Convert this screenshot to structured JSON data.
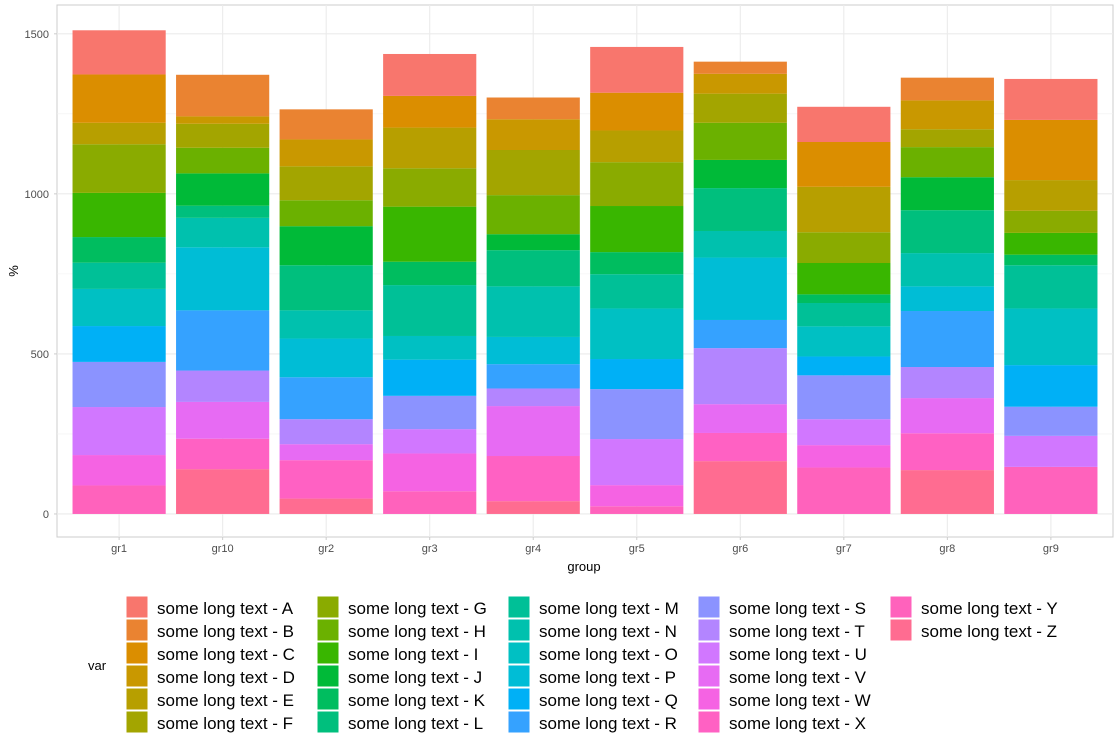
{
  "chart_data": {
    "type": "bar",
    "stacked": true,
    "title": "",
    "xlabel": "group",
    "ylabel": "%",
    "ylim": [
      -72,
      1590
    ],
    "yticks": [
      0,
      500,
      1000,
      1500
    ],
    "grid": true,
    "legend_title": "var",
    "legend_position": "bottom",
    "categories": [
      "gr1",
      "gr10",
      "gr2",
      "gr3",
      "gr4",
      "gr5",
      "gr6",
      "gr7",
      "gr8",
      "gr9"
    ],
    "series": [
      {
        "name": "some long text - A",
        "color": "#F8766D",
        "values": [
          138,
          0,
          0,
          131,
          0,
          143,
          0,
          110,
          0,
          128
        ]
      },
      {
        "name": "some long text - B",
        "color": "#EA8331",
        "values": [
          0,
          130,
          94,
          0,
          68,
          0,
          38,
          0,
          71,
          0
        ]
      },
      {
        "name": "some long text - C",
        "color": "#DB8E00",
        "values": [
          151,
          0,
          0,
          99,
          0,
          118,
          0,
          140,
          0,
          188
        ]
      },
      {
        "name": "some long text - D",
        "color": "#C99800",
        "values": [
          0,
          23,
          84,
          0,
          96,
          0,
          62,
          0,
          90,
          0
        ]
      },
      {
        "name": "some long text - E",
        "color": "#B79F00",
        "values": [
          67,
          0,
          0,
          127,
          0,
          99,
          0,
          142,
          0,
          96
        ]
      },
      {
        "name": "some long text - F",
        "color": "#A3A500",
        "values": [
          0,
          75,
          106,
          0,
          141,
          0,
          91,
          0,
          56,
          0
        ]
      },
      {
        "name": "some long text - G",
        "color": "#8AAB00",
        "values": [
          152,
          0,
          0,
          120,
          0,
          137,
          0,
          96,
          0,
          69
        ]
      },
      {
        "name": "some long text - H",
        "color": "#6BB100",
        "values": [
          0,
          80,
          81,
          0,
          122,
          0,
          116,
          0,
          94,
          0
        ]
      },
      {
        "name": "some long text - I",
        "color": "#39B600",
        "values": [
          138,
          0,
          0,
          172,
          0,
          144,
          0,
          98,
          0,
          68
        ]
      },
      {
        "name": "some long text - J",
        "color": "#00BA38",
        "values": [
          0,
          101,
          122,
          0,
          50,
          0,
          88,
          0,
          103,
          0
        ]
      },
      {
        "name": "some long text - K",
        "color": "#00BD5F",
        "values": [
          80,
          0,
          0,
          73,
          0,
          69,
          0,
          27,
          0,
          33
        ]
      },
      {
        "name": "some long text - L",
        "color": "#00BF7D",
        "values": [
          0,
          38,
          141,
          0,
          113,
          0,
          134,
          0,
          134,
          0
        ]
      },
      {
        "name": "some long text - M",
        "color": "#00C097",
        "values": [
          82,
          0,
          0,
          159,
          0,
          107,
          0,
          73,
          0,
          135
        ]
      },
      {
        "name": "some long text - N",
        "color": "#00C1AE",
        "values": [
          0,
          92,
          88,
          0,
          158,
          0,
          83,
          0,
          104,
          0
        ]
      },
      {
        "name": "some long text - O",
        "color": "#00C0C3",
        "values": [
          116,
          0,
          0,
          74,
          0,
          158,
          0,
          94,
          0,
          177
        ]
      },
      {
        "name": "some long text - P",
        "color": "#00BDD6",
        "values": [
          0,
          197,
          121,
          0,
          85,
          0,
          195,
          0,
          77,
          0
        ]
      },
      {
        "name": "some long text - Q",
        "color": "#00B0F6",
        "values": [
          112,
          0,
          0,
          113,
          0,
          94,
          0,
          59,
          0,
          130
        ]
      },
      {
        "name": "some long text - R",
        "color": "#35A2FF",
        "values": [
          0,
          188,
          131,
          0,
          76,
          0,
          88,
          0,
          175,
          0
        ]
      },
      {
        "name": "some long text - S",
        "color": "#8B93FF",
        "values": [
          141,
          0,
          0,
          104,
          0,
          156,
          0,
          137,
          0,
          91
        ]
      },
      {
        "name": "some long text - T",
        "color": "#B385FF",
        "values": [
          0,
          98,
          78,
          0,
          55,
          0,
          175,
          0,
          97,
          0
        ]
      },
      {
        "name": "some long text - U",
        "color": "#D177FF",
        "values": [
          150,
          0,
          0,
          76,
          0,
          144,
          0,
          81,
          0,
          97
        ]
      },
      {
        "name": "some long text - V",
        "color": "#E76BF3",
        "values": [
          0,
          115,
          50,
          0,
          156,
          0,
          90,
          0,
          110,
          0
        ]
      },
      {
        "name": "some long text - W",
        "color": "#F563E3",
        "values": [
          95,
          0,
          0,
          118,
          0,
          66,
          0,
          70,
          0,
          0
        ]
      },
      {
        "name": "some long text - X",
        "color": "#FF61C3",
        "values": [
          0,
          95,
          120,
          0,
          141,
          0,
          88,
          0,
          115,
          0
        ]
      },
      {
        "name": "some long text - Y",
        "color": "#FF62BC",
        "values": [
          89,
          0,
          0,
          71,
          0,
          24,
          0,
          145,
          0,
          147
        ]
      },
      {
        "name": "some long text - Z",
        "color": "#FF6C91",
        "values": [
          0,
          140,
          48,
          0,
          40,
          0,
          165,
          0,
          137,
          0
        ]
      }
    ]
  }
}
